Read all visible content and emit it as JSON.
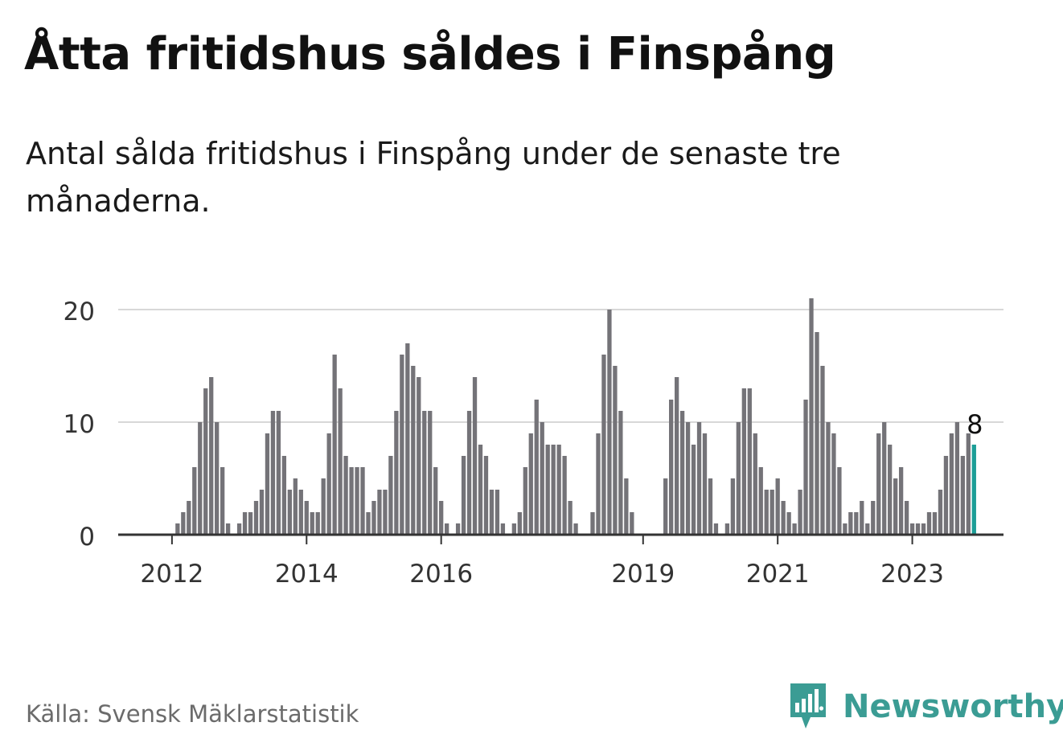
{
  "title": "Åtta fritidshus såldes i Finspång",
  "subtitle": "Antal sålda fritidshus i Finspång under de senaste tre månaderna.",
  "source": "Källa: Svensk Mäklarstatistik",
  "brand": {
    "name": "Newsworthy",
    "icon": "bar-chart-speech-bubble-icon",
    "color": "#3b9c94"
  },
  "colors": {
    "bar": "#747378",
    "highlight": "#1d9e97",
    "grid": "#d8d8d8",
    "axis": "#333333"
  },
  "chart_data": {
    "type": "bar",
    "title": "",
    "xlabel": "",
    "ylabel": "",
    "ylim": [
      0,
      21
    ],
    "yticks": [
      0,
      10,
      20
    ],
    "grid": true,
    "x_start": "2011-06",
    "x_ticks": [
      {
        "label": "2012",
        "date": "2012-01"
      },
      {
        "label": "2014",
        "date": "2014-01"
      },
      {
        "label": "2016",
        "date": "2016-01"
      },
      {
        "label": "2019",
        "date": "2019-01"
      },
      {
        "label": "2021",
        "date": "2021-01"
      },
      {
        "label": "2023",
        "date": "2023-01"
      }
    ],
    "values": [
      0,
      0,
      0,
      0,
      0,
      0,
      0,
      0,
      1,
      2,
      3,
      6,
      10,
      13,
      14,
      10,
      6,
      1,
      0,
      1,
      2,
      2,
      3,
      4,
      9,
      11,
      11,
      7,
      4,
      5,
      4,
      3,
      2,
      2,
      5,
      9,
      16,
      13,
      7,
      6,
      6,
      6,
      2,
      3,
      4,
      4,
      7,
      11,
      16,
      17,
      15,
      14,
      11,
      11,
      6,
      3,
      1,
      0,
      1,
      7,
      11,
      14,
      8,
      7,
      4,
      4,
      1,
      0,
      1,
      2,
      6,
      9,
      12,
      10,
      8,
      8,
      8,
      7,
      3,
      1,
      0,
      0,
      2,
      9,
      16,
      20,
      15,
      11,
      5,
      2,
      0,
      0,
      0,
      0,
      0,
      5,
      12,
      14,
      11,
      10,
      8,
      10,
      9,
      5,
      1,
      0,
      1,
      5,
      10,
      13,
      13,
      9,
      6,
      4,
      4,
      5,
      3,
      2,
      1,
      4,
      12,
      21,
      18,
      15,
      10,
      9,
      6,
      1,
      2,
      2,
      3,
      1,
      3,
      9,
      10,
      8,
      5,
      6,
      3,
      1,
      1,
      1,
      2,
      2,
      4,
      7,
      9,
      10,
      7,
      9,
      8
    ],
    "highlight_index": 150,
    "annotation": {
      "text": "8",
      "index": 150
    }
  }
}
